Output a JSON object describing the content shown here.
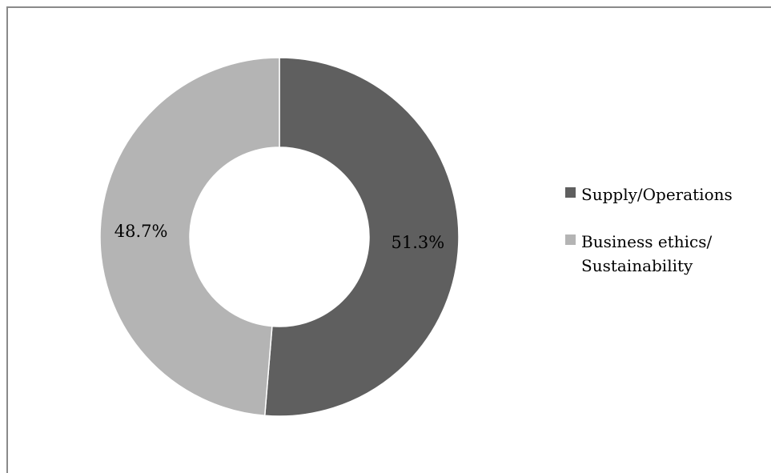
{
  "chart_data": {
    "type": "pie",
    "variant": "donut",
    "title": "",
    "slices": [
      {
        "label": "Supply/Operations",
        "value": 51.3,
        "display": "51.3%",
        "color": "#5f5f5f"
      },
      {
        "label": "Business ethics/\nSustainability",
        "value": 48.7,
        "display": "48.7%",
        "color": "#b4b4b4"
      }
    ],
    "start_angle_deg": 0,
    "direction": "clockwise",
    "legend_position": "right"
  }
}
